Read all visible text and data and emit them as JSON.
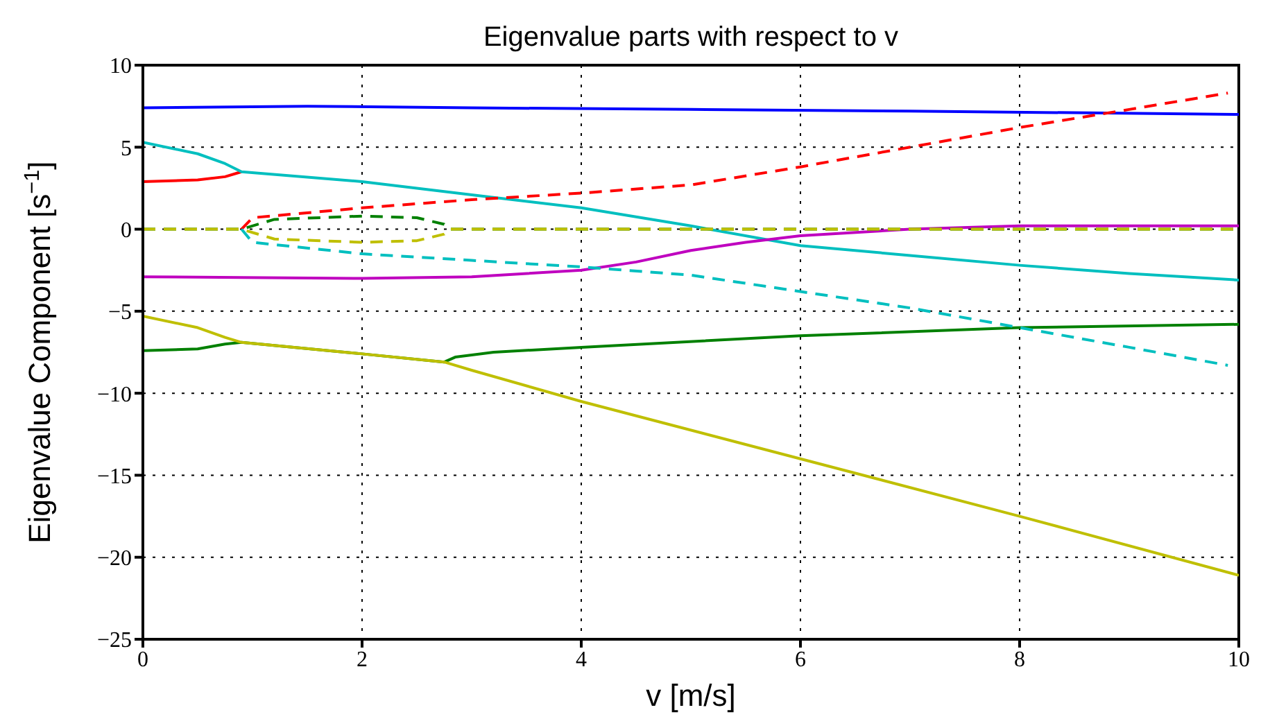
{
  "chart_data": {
    "type": "line",
    "title": "Eigenvalue parts with respect to v",
    "xlabel": "v [m/s]",
    "ylabel": "Eigenvalue Component [s$^{−1}$]",
    "xlim": [
      0,
      10
    ],
    "ylim": [
      -25,
      10
    ],
    "xticks": [
      0,
      2,
      4,
      6,
      8,
      10
    ],
    "yticks": [
      {
        "value": -25,
        "label": "−25"
      },
      {
        "value": -20,
        "label": "−20"
      },
      {
        "value": -15,
        "label": "−15"
      },
      {
        "value": -10,
        "label": "−10"
      },
      {
        "value": -5,
        "label": "−5"
      },
      0,
      5,
      10
    ],
    "grid": true,
    "legend": false,
    "marker": "none",
    "series": [
      {
        "color": "#0000ff",
        "line_style": "solid",
        "x": [
          0,
          1.5,
          3,
          5,
          7,
          10
        ],
        "values": [
          7.4,
          7.5,
          7.4,
          7.3,
          7.2,
          7.0
        ]
      },
      {
        "color": "#ff0000",
        "line_style": "solid",
        "x": [
          0,
          0.5,
          0.75,
          0.9
        ],
        "values": [
          2.9,
          3.0,
          3.2,
          3.5
        ]
      },
      {
        "color": "#00bfbf",
        "line_style": "solid",
        "x": [
          0,
          0.5,
          0.75,
          0.9,
          2,
          3,
          4,
          5,
          6,
          7,
          8,
          9,
          10
        ],
        "values": [
          5.3,
          4.6,
          4.0,
          3.5,
          2.9,
          2.1,
          1.3,
          0.2,
          -1.0,
          -1.6,
          -2.2,
          -2.7,
          -3.1
        ]
      },
      {
        "color": "#bf00bf",
        "line_style": "solid",
        "x": [
          0,
          2,
          3,
          4,
          4.5,
          5,
          5.5,
          6,
          7,
          8,
          10
        ],
        "values": [
          -2.9,
          -3.0,
          -2.9,
          -2.5,
          -2.0,
          -1.3,
          -0.8,
          -0.4,
          0.0,
          0.2,
          0.2
        ]
      },
      {
        "color": "#008000",
        "line_style": "solid",
        "x": [
          0,
          0.5,
          0.75,
          0.9,
          2,
          2.75,
          2.85,
          3.2,
          4,
          6,
          8,
          10
        ],
        "values": [
          -7.4,
          -7.3,
          -7.0,
          -6.9,
          -7.6,
          -8.1,
          -7.8,
          -7.5,
          -7.2,
          -6.5,
          -6.0,
          -5.8
        ]
      },
      {
        "color": "#bfbf00",
        "line_style": "solid",
        "x": [
          0,
          0.5,
          0.75,
          0.9,
          2,
          2.75,
          3,
          4,
          6,
          8,
          10
        ],
        "values": [
          -5.3,
          -6.0,
          -6.6,
          -6.9,
          -7.6,
          -8.1,
          -8.6,
          -10.5,
          -14,
          -17.5,
          -21.1
        ]
      },
      {
        "color": "#ff0000",
        "line_style": "dashed",
        "x": [
          0.9,
          1,
          2,
          3,
          4,
          5,
          6,
          7,
          8,
          9,
          9.9
        ],
        "values": [
          0,
          0.7,
          1.3,
          1.8,
          2.2,
          2.7,
          3.8,
          5.0,
          6.2,
          7.3,
          8.3
        ]
      },
      {
        "color": "#00bfbf",
        "line_style": "dashed",
        "x": [
          0.9,
          1,
          2,
          3,
          4,
          5,
          6,
          7,
          8,
          9,
          9.9
        ],
        "values": [
          0,
          -0.8,
          -1.5,
          -1.9,
          -2.3,
          -2.8,
          -3.8,
          -4.8,
          -6.0,
          -7.2,
          -8.3
        ]
      },
      {
        "color": "#008000",
        "line_style": "dashed",
        "x": [
          0,
          0.9,
          1.2,
          2,
          2.5,
          2.75,
          2.8,
          10
        ],
        "values": [
          0,
          0,
          0.6,
          0.8,
          0.7,
          0.3,
          0,
          0
        ]
      },
      {
        "color": "#bfbf00",
        "line_style": "dashed",
        "x": [
          0,
          0.9,
          1.2,
          2,
          2.5,
          2.75,
          2.8,
          10
        ],
        "values": [
          0,
          0,
          -0.6,
          -0.8,
          -0.7,
          -0.3,
          0,
          0
        ]
      }
    ]
  }
}
